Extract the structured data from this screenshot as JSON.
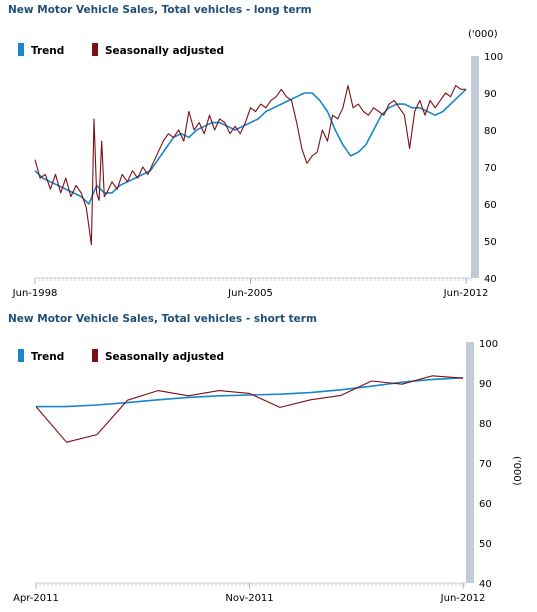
{
  "colors": {
    "trend": "#1a86c8",
    "seasonally_adjusted": "#7b1015",
    "axis_band": "#c2cbd6",
    "title": "#1f4e79"
  },
  "chart_data": [
    {
      "type": "line",
      "title": "New Motor Vehicle Sales, Total vehicles - long term",
      "unit_label": "('000)",
      "x_tick_labels": [
        "Jun-1998",
        "Jun-2005",
        "Jun-2012"
      ],
      "x_range": [
        "Jun-1998",
        "Jun-2012"
      ],
      "ylim": [
        40,
        100
      ],
      "y_ticks": [
        40,
        50,
        60,
        70,
        80,
        90,
        100
      ],
      "legend_position": "top-left",
      "grid": false,
      "series": [
        {
          "name": "Trend",
          "x": [
            "1998-06",
            "1998-09",
            "1998-12",
            "1999-03",
            "1999-06",
            "1999-09",
            "1999-12",
            "2000-03",
            "2000-06",
            "2000-09",
            "2000-12",
            "2001-03",
            "2001-06",
            "2001-09",
            "2001-12",
            "2002-03",
            "2002-06",
            "2002-09",
            "2002-12",
            "2003-03",
            "2003-06",
            "2003-09",
            "2003-12",
            "2004-03",
            "2004-06",
            "2004-09",
            "2004-12",
            "2005-03",
            "2005-06",
            "2005-09",
            "2005-12",
            "2006-03",
            "2006-06",
            "2006-09",
            "2006-12",
            "2007-03",
            "2007-06",
            "2007-09",
            "2007-12",
            "2008-03",
            "2008-06",
            "2008-09",
            "2008-12",
            "2009-03",
            "2009-06",
            "2009-09",
            "2009-12",
            "2010-03",
            "2010-06",
            "2010-09",
            "2010-12",
            "2011-03",
            "2011-06",
            "2011-09",
            "2011-12",
            "2012-03",
            "2012-06"
          ],
          "values": [
            69,
            67,
            66,
            65,
            64,
            63,
            62,
            60,
            65,
            63,
            63,
            65,
            66,
            67,
            68,
            69,
            72,
            75,
            78,
            79,
            78,
            80,
            81,
            82,
            82,
            81,
            80,
            81,
            82,
            83,
            85,
            86,
            87,
            88,
            89,
            90,
            90,
            88,
            85,
            80,
            76,
            73,
            74,
            76,
            80,
            84,
            86,
            87,
            87,
            86,
            86,
            85,
            84,
            85,
            87,
            89,
            91
          ]
        },
        {
          "name": "Seasonally adjusted",
          "x": [
            "1998-06",
            "1998-08",
            "1998-10",
            "1998-12",
            "1999-02",
            "1999-04",
            "1999-06",
            "1999-08",
            "1999-10",
            "1999-12",
            "2000-02",
            "2000-04",
            "2000-05",
            "2000-06",
            "2000-07",
            "2000-08",
            "2000-09",
            "2000-10",
            "2000-12",
            "2001-02",
            "2001-04",
            "2001-06",
            "2001-08",
            "2001-10",
            "2001-12",
            "2002-02",
            "2002-04",
            "2002-06",
            "2002-08",
            "2002-10",
            "2002-12",
            "2003-02",
            "2003-04",
            "2003-06",
            "2003-08",
            "2003-10",
            "2003-12",
            "2004-02",
            "2004-04",
            "2004-06",
            "2004-08",
            "2004-10",
            "2004-12",
            "2005-02",
            "2005-04",
            "2005-06",
            "2005-08",
            "2005-10",
            "2005-12",
            "2006-02",
            "2006-04",
            "2006-06",
            "2006-08",
            "2006-10",
            "2006-12",
            "2007-02",
            "2007-04",
            "2007-06",
            "2007-08",
            "2007-10",
            "2007-12",
            "2008-02",
            "2008-04",
            "2008-06",
            "2008-08",
            "2008-10",
            "2008-12",
            "2009-02",
            "2009-04",
            "2009-06",
            "2009-08",
            "2009-10",
            "2009-12",
            "2010-02",
            "2010-04",
            "2010-06",
            "2010-08",
            "2010-10",
            "2010-12",
            "2011-02",
            "2011-04",
            "2011-06",
            "2011-08",
            "2011-10",
            "2011-12",
            "2012-02",
            "2012-04",
            "2012-06"
          ],
          "values": [
            72,
            67,
            68,
            64,
            68,
            63,
            67,
            62,
            65,
            63,
            59,
            49,
            83,
            63,
            61,
            77,
            62,
            63,
            66,
            64,
            68,
            66,
            69,
            67,
            70,
            68,
            71,
            74,
            77,
            79,
            78,
            80,
            77,
            85,
            80,
            82,
            79,
            84,
            80,
            83,
            82,
            79,
            81,
            79,
            82,
            86,
            85,
            87,
            86,
            88,
            89,
            91,
            89,
            88,
            82,
            75,
            71,
            73,
            74,
            80,
            77,
            84,
            83,
            86,
            92,
            86,
            87,
            85,
            84,
            86,
            85,
            84,
            87,
            88,
            86,
            84,
            75,
            85,
            88,
            84,
            88,
            86,
            88,
            90,
            89,
            92,
            91,
            91
          ]
        }
      ]
    },
    {
      "type": "line",
      "title": "New Motor Vehicle Sales, Total vehicles - short term",
      "unit_label": "('000)",
      "x_tick_labels": [
        "Apr-2011",
        "Nov-2011",
        "Jun-2012"
      ],
      "categories": [
        "Apr-2011",
        "May-2011",
        "Jun-2011",
        "Jul-2011",
        "Aug-2011",
        "Sep-2011",
        "Oct-2011",
        "Nov-2011",
        "Dec-2011",
        "Jan-2012",
        "Feb-2012",
        "Mar-2012",
        "Apr-2012",
        "May-2012",
        "Jun-2012"
      ],
      "ylim": [
        40,
        100
      ],
      "y_ticks": [
        40,
        50,
        60,
        70,
        80,
        90,
        100
      ],
      "legend_position": "top-left",
      "grid": false,
      "series": [
        {
          "name": "Trend",
          "values": [
            84.1,
            84.1,
            84.5,
            85.1,
            85.8,
            86.4,
            86.8,
            87.0,
            87.2,
            87.6,
            88.3,
            89.2,
            90.2,
            90.9,
            91.3
          ]
        },
        {
          "name": "Seasonally adjusted",
          "values": [
            84.1,
            75.2,
            77.1,
            85.7,
            88.1,
            86.8,
            88.1,
            87.4,
            83.9,
            85.8,
            86.9,
            90.5,
            89.7,
            91.8,
            91.2
          ]
        }
      ]
    }
  ]
}
